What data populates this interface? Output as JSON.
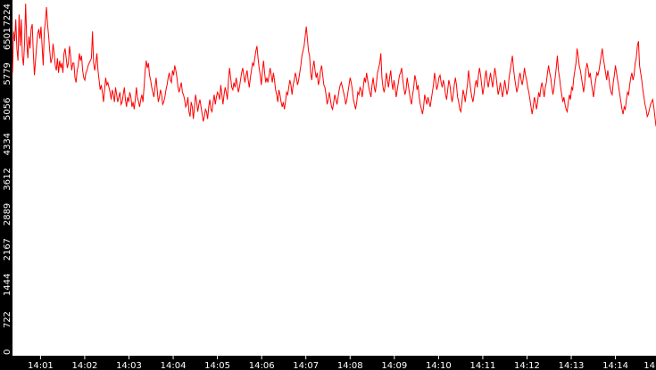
{
  "chart_data": {
    "type": "line",
    "title": "",
    "xlabel": "",
    "ylabel": "",
    "ylim": [
      0,
      7224
    ],
    "y_ticks": [
      0,
      722,
      1444,
      2167,
      2889,
      3612,
      4334,
      5056,
      5779,
      6501,
      7224
    ],
    "x_ticks": [
      "14:01",
      "14:02",
      "14:03",
      "14:04",
      "14:05",
      "14:06",
      "14:07",
      "14:08",
      "14:09",
      "14:10",
      "14:11",
      "14:12",
      "14:13",
      "14:14",
      "14"
    ],
    "xlim": [
      "14:00:22",
      "14:14:55"
    ],
    "grid": false,
    "legend": "none",
    "line_color": "#ff0000",
    "axis_background": "#000000",
    "axis_text_color": "#ffffff",
    "series": [
      {
        "values": [
          5800,
          6650,
          6450,
          6900,
          6300,
          6050,
          7000,
          6350,
          6900,
          6150,
          5950,
          6400,
          7224,
          6450,
          6100,
          6550,
          6300,
          6700,
          6800,
          6200,
          5750,
          6050,
          6350,
          6600,
          6700,
          6500,
          6750,
          6350,
          5950,
          6650,
          6850,
          7150,
          6800,
          6550,
          6250,
          6000,
          6100,
          6400,
          6200,
          5950,
          5850,
          6100,
          5800,
          6050,
          5900,
          6000,
          5800,
          6200,
          6300,
          6100,
          5900,
          6000,
          6350,
          6150,
          5850,
          6000,
          6000,
          5700,
          5600,
          5850,
          5950,
          6200,
          6050,
          6150,
          5850,
          5700,
          5650,
          5800,
          5850,
          5950,
          6000,
          6050,
          6100,
          6650,
          6000,
          5850,
          6000,
          6200,
          5850,
          5650,
          5450,
          5550,
          5400,
          5200,
          5450,
          5700,
          5550,
          5600,
          5500,
          5400,
          5250,
          5450,
          5350,
          5200,
          5500,
          5350,
          5200,
          5300,
          5400,
          5150,
          5200,
          5350,
          5500,
          5250,
          5100,
          5300,
          5200,
          5400,
          5300,
          5100,
          5200,
          5050,
          5250,
          5500,
          5300,
          5200,
          5100,
          5250,
          5350,
          5200,
          5500,
          5850,
          6050,
          5900,
          6000,
          5750,
          5650,
          5500,
          5400,
          5300,
          5500,
          5700,
          5450,
          5200,
          5300,
          5450,
          5350,
          5150,
          5200,
          5300,
          5450,
          5550,
          5700,
          5800,
          5650,
          5600,
          5850,
          5750,
          5950,
          5850,
          5700,
          5500,
          5400,
          5500,
          5600,
          5400,
          5350,
          5250,
          5100,
          5150,
          5300,
          5000,
          4900,
          5200,
          5100,
          4850,
          5100,
          5350,
          5200,
          5000,
          5150,
          5250,
          5100,
          4950,
          4800,
          4900,
          5050,
          5000,
          4850,
          5100,
          5250,
          5050,
          5000,
          5200,
          5350,
          5150,
          5300,
          5400,
          5350,
          5250,
          5550,
          5350,
          5150,
          5350,
          5500,
          5400,
          5250,
          5650,
          5900,
          5700,
          5500,
          5450,
          5600,
          5500,
          5700,
          5550,
          5400,
          5500,
          5650,
          5800,
          5900,
          5750,
          5600,
          5750,
          5850,
          5650,
          5500,
          5700,
          5850,
          6000,
          5950,
          6100,
          6250,
          6350,
          6100,
          5900,
          5750,
          5550,
          5850,
          6050,
          5800,
          5600,
          5700,
          5600,
          5750,
          5900,
          5750,
          5600,
          5800,
          5650,
          5450,
          5350,
          5200,
          5450,
          5350,
          5200,
          5100,
          5200,
          5050,
          5200,
          5400,
          5350,
          5500,
          5650,
          5550,
          5350,
          5550,
          5650,
          5800,
          5700,
          5550,
          5650,
          5800,
          5950,
          6150,
          6250,
          6350,
          6550,
          6750,
          6500,
          6250,
          6150,
          5800,
          5650,
          5900,
          6050,
          5850,
          5700,
          5800,
          5550,
          5650,
          5850,
          5950,
          5750,
          5550,
          5500,
          5350,
          5150,
          5250,
          5400,
          5250,
          5100,
          5050,
          5200,
          5350,
          5250,
          5150,
          5300,
          5450,
          5550,
          5600,
          5500,
          5400,
          5300,
          5150,
          5250,
          5400,
          5550,
          5700,
          5600,
          5450,
          5250,
          5150,
          5050,
          5200,
          5400,
          5350,
          5500,
          5450,
          5300,
          5500,
          5700,
          5600,
          5800,
          5650,
          5500,
          5400,
          5300,
          5550,
          5700,
          5500,
          5400,
          5600,
          5800,
          5900,
          6000,
          6200,
          5700,
          5500,
          5400,
          5550,
          5800,
          5650,
          5500,
          5700,
          5850,
          5600,
          5450,
          5650,
          5500,
          5300,
          5450,
          5600,
          5750,
          5800,
          5900,
          5650,
          5500,
          5350,
          5450,
          5700,
          5550,
          5400,
          5250,
          5150,
          5350,
          5500,
          5750,
          5650,
          5450,
          5550,
          5300,
          5150,
          5050,
          4950,
          5100,
          5350,
          5250,
          5150,
          5300,
          5200,
          5100,
          5250,
          5400,
          5550,
          5800,
          5650,
          5450,
          5550,
          5700,
          5750,
          5600,
          5500,
          5650,
          5550,
          5350,
          5250,
          5450,
          5650,
          5550,
          5350,
          5200,
          5350,
          5550,
          5700,
          5550,
          5300,
          5200,
          5050,
          5000,
          5200,
          5450,
          5350,
          5200,
          5400,
          5550,
          5850,
          5650,
          5450,
          5300,
          5200,
          5350,
          5550,
          5650,
          5500,
          5750,
          5900,
          5750,
          5550,
          5350,
          5500,
          5700,
          5850,
          5650,
          5500,
          5650,
          5800,
          5650,
          5500,
          5700,
          5900,
          5750,
          5550,
          5350,
          5450,
          5600,
          5450,
          5300,
          5450,
          5650,
          5500,
          5350,
          5450,
          5700,
          5850,
          6000,
          6150,
          5900,
          5700,
          5550,
          5400,
          5500,
          5700,
          5800,
          5650,
          5550,
          5700,
          5900,
          5750,
          5650,
          5500,
          5400,
          5250,
          5100,
          4950,
          5100,
          5300,
          5200,
          5050,
          5200,
          5400,
          5300,
          5500,
          5600,
          5450,
          5300,
          5500,
          5600,
          5800,
          5950,
          5800,
          5700,
          5500,
          5350,
          5500,
          5700,
          5900,
          6150,
          5850,
          5700,
          5500,
          5350,
          5200,
          5300,
          5150,
          5050,
          5000,
          5200,
          5350,
          5250,
          5500,
          5450,
          5700,
          5850,
          6000,
          6300,
          6150,
          5950,
          5850,
          5700,
          5550,
          5400,
          5600,
          5850,
          6000,
          5900,
          5700,
          5800,
          5600,
          5450,
          5300,
          5500,
          5650,
          5800,
          5750,
          5850,
          6000,
          6150,
          6300,
          6100,
          5950,
          5800,
          5650,
          5850,
          5700,
          5500,
          5400,
          5350,
          5600,
          5750,
          5950,
          5800,
          5650,
          5500,
          5350,
          5200,
          5050,
          4950,
          5100,
          5050,
          5250,
          5400,
          5350,
          5550,
          5700,
          5800,
          5650,
          5750,
          6000,
          6100,
          6350,
          6450,
          5950,
          5800,
          5650,
          5450,
          5300,
          5150,
          5050,
          4900,
          4950,
          5050,
          5150,
          5200,
          5250,
          5100,
          4900,
          4700
        ]
      }
    ]
  }
}
